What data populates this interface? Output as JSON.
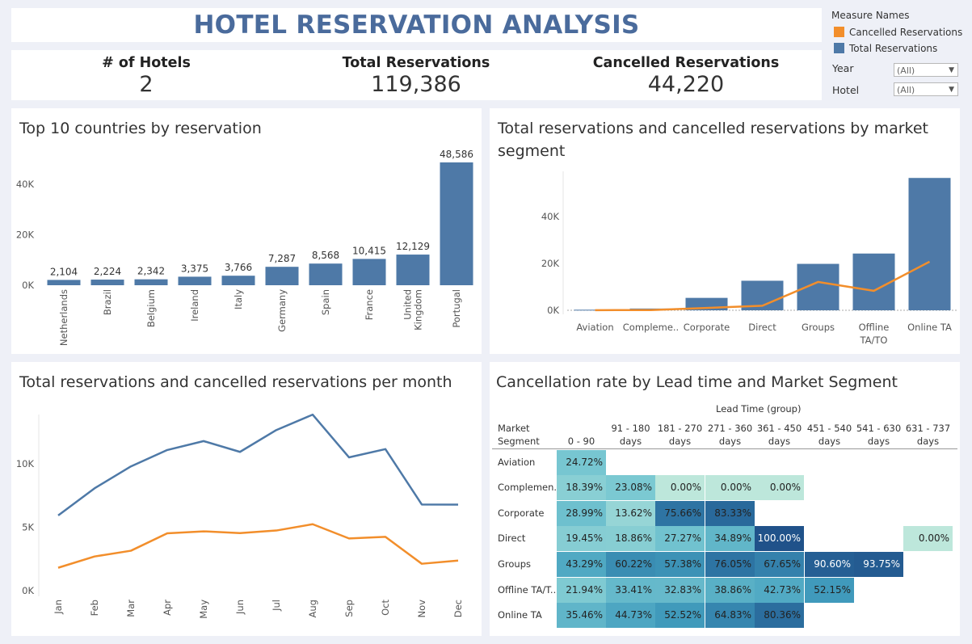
{
  "dashboard": {
    "title": "HOTEL RESERVATION ANALYSIS",
    "kpis": [
      {
        "label": "# of Hotels",
        "value": "2"
      },
      {
        "label": "Total Reservations",
        "value": "119,386"
      },
      {
        "label": "Cancelled Reservations",
        "value": "44,220"
      }
    ]
  },
  "legend": {
    "title": "Measure Names",
    "items": [
      {
        "label": "Cancelled Reservations",
        "color": "#f28e2b"
      },
      {
        "label": "Total Reservations",
        "color": "#4e79a7"
      }
    ]
  },
  "filters": [
    {
      "label": "Year",
      "value": "(All)"
    },
    {
      "label": "Hotel",
      "value": "(All)"
    }
  ],
  "chart_data": [
    {
      "type": "bar",
      "title": "Top 10 countries by reservation",
      "categories": [
        "Netherlands",
        "Brazil",
        "Belgium",
        "Ireland",
        "Italy",
        "Germany",
        "Spain",
        "France",
        "United Kingdom",
        "Portugal"
      ],
      "values": [
        2104,
        2224,
        2342,
        3375,
        3766,
        7287,
        8568,
        10415,
        12129,
        48586
      ],
      "value_labels": [
        "2,104",
        "2,224",
        "2,342",
        "3,375",
        "3,766",
        "7,287",
        "8,568",
        "10,415",
        "12,129",
        "48,586"
      ],
      "y_ticks": [
        "0K",
        "20K",
        "40K"
      ],
      "color": "#4e79a7"
    },
    {
      "type": "bar",
      "title": "Total reservations and cancelled reservations by market segment",
      "categories": [
        "Aviation",
        "Compleme..",
        "Corporate",
        "Direct",
        "Groups",
        "Offline TA/TO",
        "Online TA"
      ],
      "series": [
        {
          "name": "Total Reservations",
          "type": "bar",
          "color": "#4e79a7",
          "values": [
            237,
            743,
            5295,
            12606,
            19811,
            24219,
            56477
          ]
        },
        {
          "name": "Cancelled Reservations",
          "type": "line",
          "color": "#f28e2b",
          "values": [
            52,
            97,
            992,
            1934,
            12097,
            8311,
            20739
          ]
        }
      ],
      "y_ticks": [
        "0K",
        "20K",
        "40K"
      ]
    },
    {
      "type": "line",
      "title": "Total reservations and cancelled reservations per month",
      "categories": [
        "Jan",
        "Feb",
        "Mar",
        "Apr",
        "May",
        "Jun",
        "Jul",
        "Aug",
        "Sep",
        "Oct",
        "Nov",
        "Dec"
      ],
      "series": [
        {
          "name": "Total Reservations",
          "color": "#4e79a7",
          "values": [
            5929,
            8068,
            9794,
            11089,
            11791,
            10939,
            12661,
            13877,
            10508,
            11160,
            6794,
            6780
          ]
        },
        {
          "name": "Cancelled Reservations",
          "color": "#f28e2b",
          "values": [
            1807,
            2696,
            3149,
            4524,
            4677,
            4535,
            4742,
            5239,
            4116,
            4246,
            2122,
            2371
          ]
        }
      ],
      "y_ticks": [
        "0K",
        "5K",
        "10K"
      ]
    },
    {
      "type": "heatmap",
      "title": "Cancellation rate by Lead time and Market Segment",
      "column_group_label": "Lead Time (group)",
      "row_header": [
        "Market",
        "Segment"
      ],
      "columns": [
        [
          "0 - 90 days"
        ],
        [
          "91 - 180",
          "days"
        ],
        [
          "181 - 270",
          "days"
        ],
        [
          "271 - 360",
          "days"
        ],
        [
          "361 - 450",
          "days"
        ],
        [
          "451 - 540",
          "days"
        ],
        [
          "541 - 630",
          "days"
        ],
        [
          "631 - 737",
          "days"
        ]
      ],
      "rows": [
        "Aviation",
        "Complemen..",
        "Corporate",
        "Direct",
        "Groups",
        "Offline TA/T..",
        "Online TA"
      ],
      "cells": [
        [
          "24.72%",
          null,
          null,
          null,
          null,
          null,
          null,
          null
        ],
        [
          "18.39%",
          "23.08%",
          "0.00%",
          "0.00%",
          "0.00%",
          null,
          null,
          null
        ],
        [
          "28.99%",
          "13.62%",
          "75.66%",
          "83.33%",
          null,
          null,
          null,
          null
        ],
        [
          "19.45%",
          "18.86%",
          "27.27%",
          "34.89%",
          "100.00%",
          null,
          null,
          "0.00%"
        ],
        [
          "43.29%",
          "60.22%",
          "57.38%",
          "76.05%",
          "67.65%",
          "90.60%",
          "93.75%",
          null
        ],
        [
          "21.94%",
          "33.41%",
          "32.83%",
          "38.86%",
          "42.73%",
          "52.15%",
          null,
          null
        ],
        [
          "35.46%",
          "44.73%",
          "52.52%",
          "64.83%",
          "80.36%",
          null,
          null,
          null
        ]
      ]
    }
  ]
}
